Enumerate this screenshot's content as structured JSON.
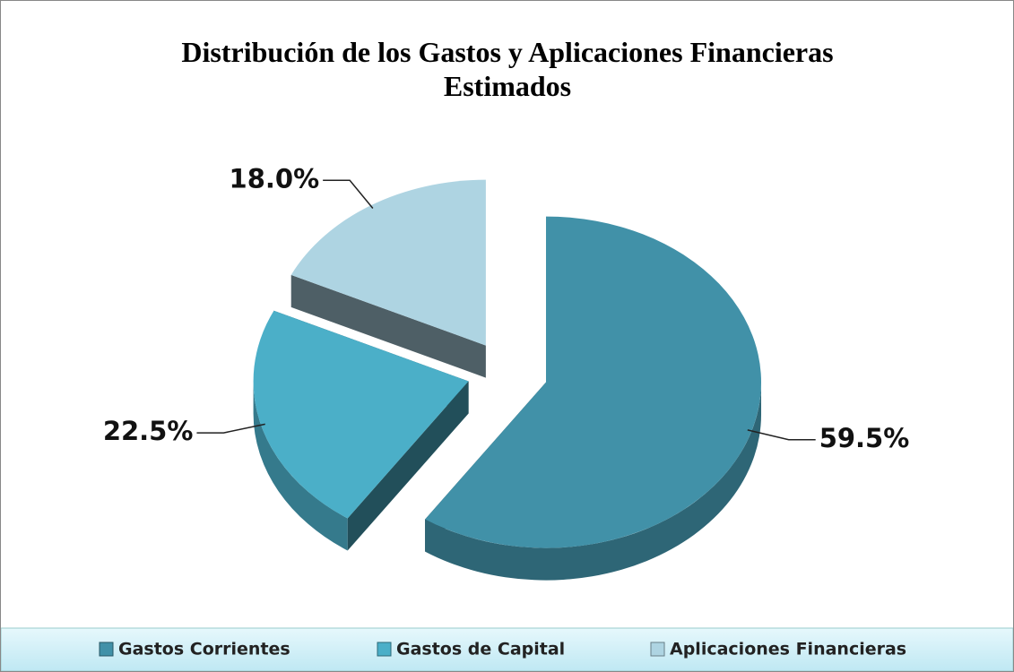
{
  "chart_data": {
    "type": "pie",
    "title": "Distribución de los Gastos y Aplicaciones Financieras Estimados",
    "categories": [
      "Gastos Corrientes",
      "Gastos de Capital",
      "Aplicaciones Financieras"
    ],
    "values": [
      59.5,
      22.5,
      18.0
    ],
    "value_labels": [
      "59.5%",
      "22.5%",
      "18.0%"
    ],
    "colors": [
      "#4191a8",
      "#4bafc8",
      "#aed4e2"
    ],
    "legend": "bottom"
  }
}
